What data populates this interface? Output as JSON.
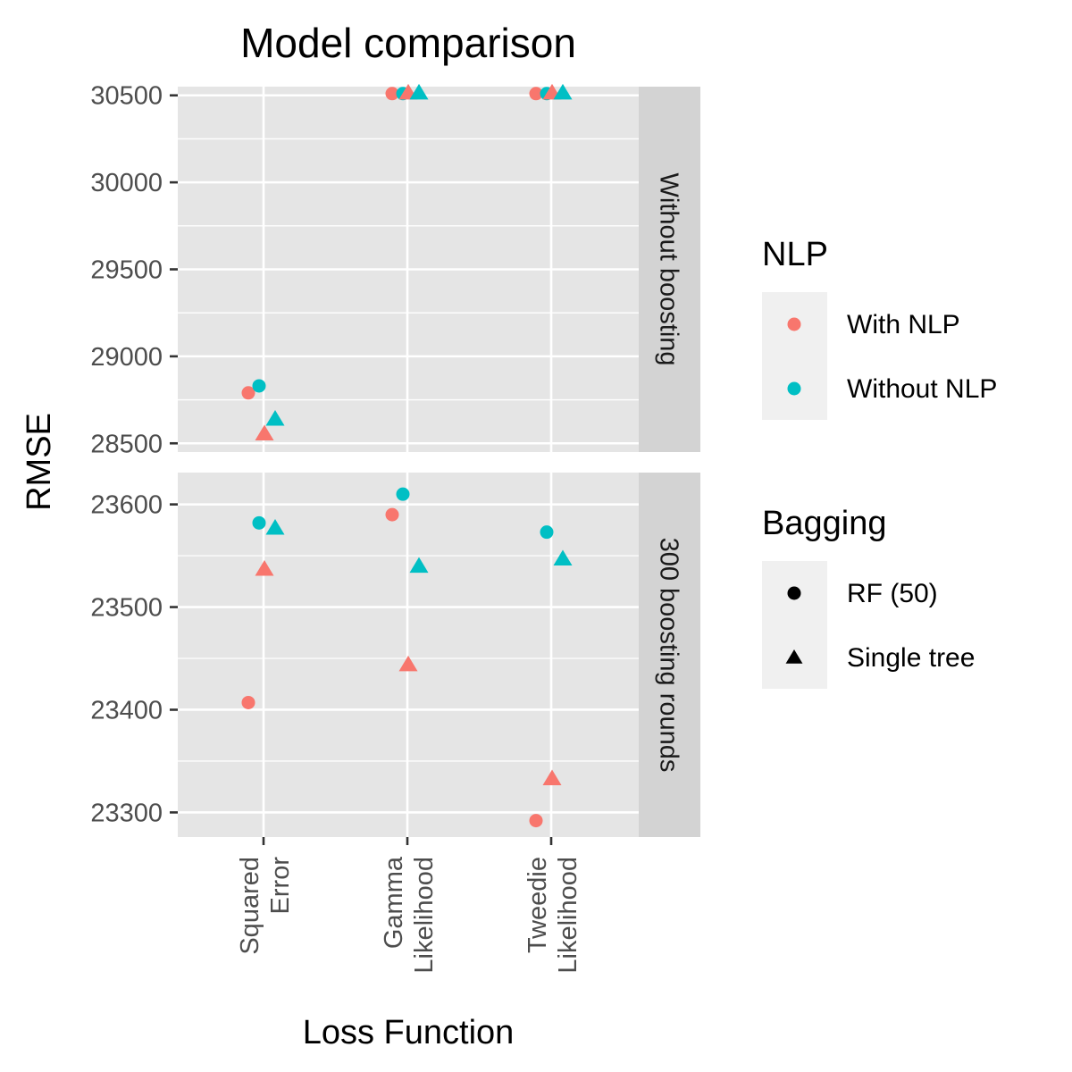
{
  "chart_data": {
    "type": "scatter",
    "title": "Model comparison",
    "xlabel": "Loss Function",
    "ylabel": "RMSE",
    "categories": [
      {
        "line1": "Squared",
        "line2": "Error"
      },
      {
        "line1": "Gamma",
        "line2": "Likelihood"
      },
      {
        "line1": "Tweedie",
        "line2": "Likelihood"
      }
    ],
    "grid": true,
    "legend_position": "right",
    "facets": [
      {
        "label": "Without boosting",
        "ylim": [
          28450,
          30550
        ],
        "y_ticks": [
          28500,
          29000,
          29500,
          30000,
          30500
        ],
        "points": [
          {
            "category": 0,
            "nlp": 0,
            "bagging": 0,
            "y": 28790
          },
          {
            "category": 0,
            "nlp": 1,
            "bagging": 0,
            "y": 28830
          },
          {
            "category": 0,
            "nlp": 0,
            "bagging": 1,
            "y": 28555
          },
          {
            "category": 0,
            "nlp": 1,
            "bagging": 1,
            "y": 28640
          },
          {
            "category": 1,
            "nlp": 0,
            "bagging": 0,
            "y": 30510
          },
          {
            "category": 1,
            "nlp": 1,
            "bagging": 0,
            "y": 30510
          },
          {
            "category": 1,
            "nlp": 0,
            "bagging": 1,
            "y": 30515
          },
          {
            "category": 1,
            "nlp": 1,
            "bagging": 1,
            "y": 30515
          },
          {
            "category": 2,
            "nlp": 0,
            "bagging": 0,
            "y": 30510
          },
          {
            "category": 2,
            "nlp": 1,
            "bagging": 0,
            "y": 30510
          },
          {
            "category": 2,
            "nlp": 0,
            "bagging": 1,
            "y": 30515
          },
          {
            "category": 2,
            "nlp": 1,
            "bagging": 1,
            "y": 30515
          }
        ]
      },
      {
        "label": "300 boosting rounds",
        "ylim": [
          23276,
          23631
        ],
        "y_ticks": [
          23300,
          23400,
          23500,
          23600
        ],
        "points": [
          {
            "category": 0,
            "nlp": 0,
            "bagging": 0,
            "y": 23407
          },
          {
            "category": 0,
            "nlp": 1,
            "bagging": 0,
            "y": 23582
          },
          {
            "category": 0,
            "nlp": 0,
            "bagging": 1,
            "y": 23537
          },
          {
            "category": 0,
            "nlp": 1,
            "bagging": 1,
            "y": 23577
          },
          {
            "category": 1,
            "nlp": 0,
            "bagging": 0,
            "y": 23590
          },
          {
            "category": 1,
            "nlp": 1,
            "bagging": 0,
            "y": 23610
          },
          {
            "category": 1,
            "nlp": 0,
            "bagging": 1,
            "y": 23444
          },
          {
            "category": 1,
            "nlp": 1,
            "bagging": 1,
            "y": 23540
          },
          {
            "category": 2,
            "nlp": 0,
            "bagging": 0,
            "y": 23292
          },
          {
            "category": 2,
            "nlp": 1,
            "bagging": 0,
            "y": 23573
          },
          {
            "category": 2,
            "nlp": 0,
            "bagging": 1,
            "y": 23333
          },
          {
            "category": 2,
            "nlp": 1,
            "bagging": 1,
            "y": 23547
          }
        ]
      }
    ],
    "legends": [
      {
        "title": "NLP",
        "items": [
          {
            "label": "With NLP",
            "color": "#F8766D",
            "shape": "circle"
          },
          {
            "label": "Without NLP",
            "color": "#00BFC4",
            "shape": "circle"
          }
        ]
      },
      {
        "title": "Bagging",
        "items": [
          {
            "label": "RF (50)",
            "color": "#000000",
            "shape": "circle"
          },
          {
            "label": "Single tree",
            "color": "#000000",
            "shape": "triangle"
          }
        ]
      }
    ],
    "colors": {
      "panel_bg": "#E5E5E5",
      "strip_bg": "#D3D3D3",
      "grid": "#FFFFFF",
      "legend_key_bg": "#F0F0F0",
      "axis_text": "#4D4D4D"
    }
  }
}
